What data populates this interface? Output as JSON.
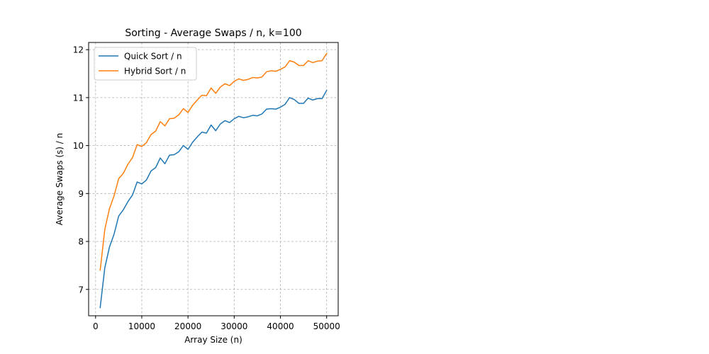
{
  "chart_data": {
    "type": "line",
    "title": "Sorting - Average Swaps / n, k=100",
    "xlabel": "Array Size (n)",
    "ylabel": "Average Swaps (s) / n",
    "xlim": [
      -1500,
      52500
    ],
    "ylim": [
      6.45,
      12.15
    ],
    "xticks": [
      0,
      10000,
      20000,
      30000,
      40000,
      50000
    ],
    "xtick_labels": [
      "0",
      "10000",
      "20000",
      "30000",
      "40000",
      "50000"
    ],
    "yticks": [
      7,
      8,
      9,
      10,
      11,
      12
    ],
    "ytick_labels": [
      "7",
      "8",
      "9",
      "10",
      "11",
      "12"
    ],
    "grid": true,
    "legend_position": "top-left",
    "x": [
      1000,
      2000,
      3000,
      4000,
      5000,
      6000,
      7000,
      8000,
      9000,
      10000,
      11000,
      12000,
      13000,
      14000,
      15000,
      16000,
      17000,
      18000,
      19000,
      20000,
      21000,
      22000,
      23000,
      24000,
      25000,
      26000,
      27000,
      28000,
      29000,
      30000,
      31000,
      32000,
      33000,
      34000,
      35000,
      36000,
      37000,
      38000,
      39000,
      40000,
      41000,
      42000,
      43000,
      44000,
      45000,
      46000,
      47000,
      48000,
      49000,
      50000
    ],
    "series": [
      {
        "name": "Quick Sort / n",
        "color": "#1f77b4",
        "values": [
          6.62,
          7.45,
          7.88,
          8.15,
          8.53,
          8.66,
          8.83,
          8.97,
          9.24,
          9.2,
          9.28,
          9.47,
          9.54,
          9.74,
          9.62,
          9.8,
          9.81,
          9.87,
          10.0,
          9.92,
          10.07,
          10.18,
          10.28,
          10.26,
          10.43,
          10.31,
          10.45,
          10.52,
          10.48,
          10.56,
          10.61,
          10.58,
          10.6,
          10.63,
          10.62,
          10.66,
          10.76,
          10.77,
          10.76,
          10.8,
          10.86,
          11.0,
          10.96,
          10.88,
          10.88,
          10.99,
          10.95,
          10.98,
          10.98,
          11.15
        ]
      },
      {
        "name": "Hybrid Sort / n",
        "color": "#ff7f0e",
        "values": [
          7.4,
          8.25,
          8.68,
          8.95,
          9.31,
          9.42,
          9.61,
          9.75,
          10.02,
          9.98,
          10.06,
          10.23,
          10.3,
          10.5,
          10.41,
          10.56,
          10.57,
          10.64,
          10.77,
          10.69,
          10.84,
          10.95,
          11.05,
          11.04,
          11.2,
          11.09,
          11.22,
          11.29,
          11.25,
          11.34,
          11.39,
          11.36,
          11.38,
          11.42,
          11.41,
          11.43,
          11.54,
          11.56,
          11.55,
          11.59,
          11.64,
          11.77,
          11.74,
          11.67,
          11.67,
          11.77,
          11.73,
          11.76,
          11.77,
          11.92
        ]
      }
    ]
  }
}
